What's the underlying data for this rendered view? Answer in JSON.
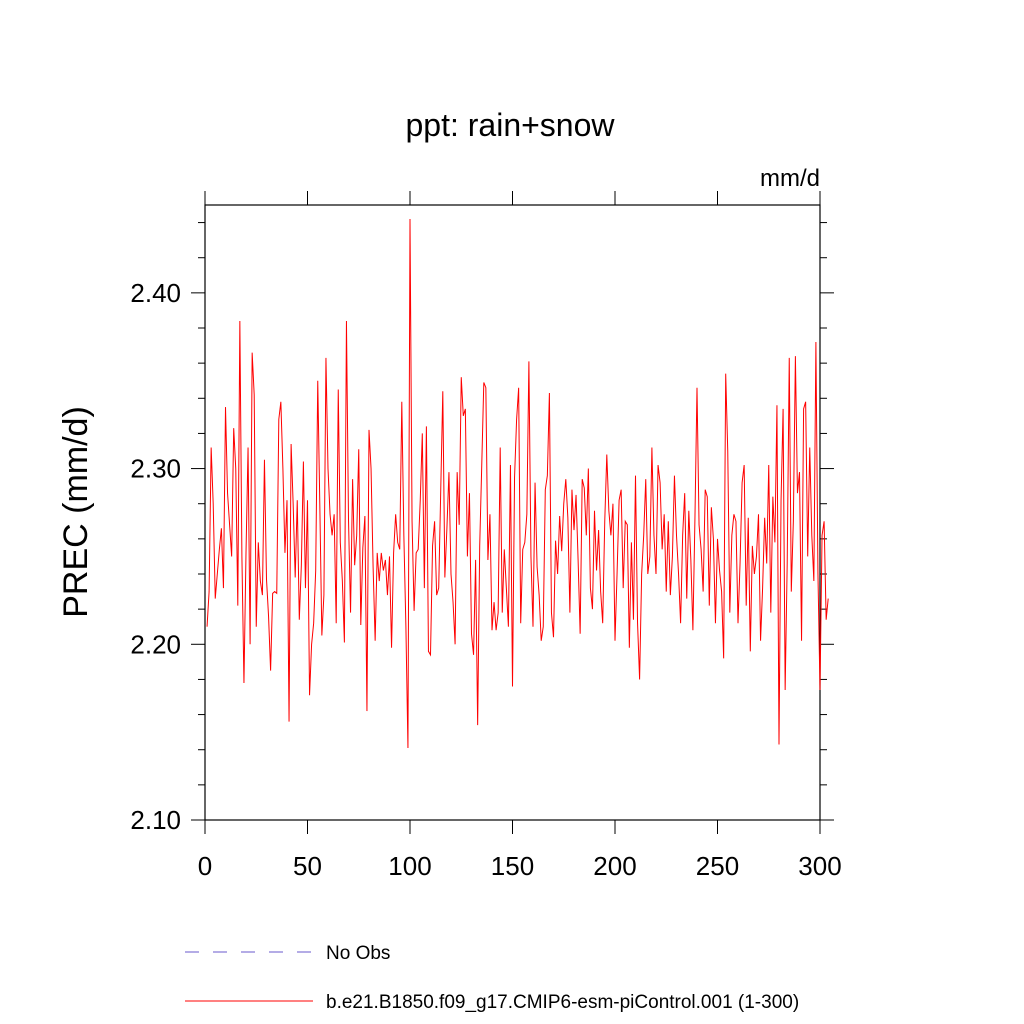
{
  "chart_data": {
    "type": "line",
    "title": "ppt: rain+snow",
    "units": "mm/d",
    "ylabel": "PREC  (mm/d)",
    "xlim": [
      0,
      300
    ],
    "ylim": [
      2.1,
      2.45
    ],
    "x_ticks": [
      0,
      50,
      100,
      150,
      200,
      250,
      300
    ],
    "x_tick_labels": [
      "0",
      "50",
      "100",
      "150",
      "200",
      "250",
      "300"
    ],
    "y_ticks": [
      2.1,
      2.2,
      2.3,
      2.4
    ],
    "y_tick_labels": [
      "2.10",
      "2.20",
      "2.30",
      "2.40"
    ],
    "grid": false,
    "legend_position": "bottom",
    "series": [
      {
        "name": "No Obs",
        "color": "#6a5acd",
        "style": "dashed",
        "values": []
      },
      {
        "name": "b.e21.B1850.f09_g17.CMIP6-esm-piControl.001 (1-300)",
        "color": "#ff0000",
        "style": "solid",
        "x_start": 1,
        "values": [
          2.21,
          2.23,
          2.312,
          2.28,
          2.226,
          2.24,
          2.254,
          2.266,
          2.232,
          2.335,
          2.286,
          2.268,
          2.25,
          2.323,
          2.3,
          2.222,
          2.384,
          2.25,
          2.178,
          2.252,
          2.312,
          2.2,
          2.366,
          2.342,
          2.21,
          2.258,
          2.236,
          2.228,
          2.305,
          2.237,
          2.216,
          2.185,
          2.229,
          2.23,
          2.229,
          2.328,
          2.338,
          2.3,
          2.252,
          2.282,
          2.156,
          2.314,
          2.28,
          2.238,
          2.282,
          2.214,
          2.245,
          2.304,
          2.232,
          2.282,
          2.171,
          2.2,
          2.212,
          2.242,
          2.35,
          2.28,
          2.205,
          2.228,
          2.363,
          2.3,
          2.274,
          2.262,
          2.274,
          2.212,
          2.345,
          2.258,
          2.236,
          2.201,
          2.384,
          2.271,
          2.218,
          2.294,
          2.245,
          2.262,
          2.311,
          2.211,
          2.255,
          2.273,
          2.162,
          2.322,
          2.3,
          2.244,
          2.202,
          2.252,
          2.236,
          2.252,
          2.242,
          2.248,
          2.228,
          2.25,
          2.198,
          2.252,
          2.274,
          2.258,
          2.254,
          2.338,
          2.262,
          2.21,
          2.141,
          2.442,
          2.27,
          2.219,
          2.252,
          2.254,
          2.282,
          2.32,
          2.232,
          2.324,
          2.196,
          2.194,
          2.256,
          2.27,
          2.228,
          2.232,
          2.288,
          2.344,
          2.238,
          2.266,
          2.298,
          2.24,
          2.224,
          2.2,
          2.298,
          2.268,
          2.352,
          2.33,
          2.334,
          2.25,
          2.286,
          2.206,
          2.194,
          2.248,
          2.154,
          2.256,
          2.302,
          2.349,
          2.346,
          2.248,
          2.274,
          2.208,
          2.224,
          2.208,
          2.218,
          2.312,
          2.218,
          2.254,
          2.232,
          2.21,
          2.302,
          2.176,
          2.295,
          2.328,
          2.346,
          2.212,
          2.254,
          2.258,
          2.274,
          2.361,
          2.25,
          2.21,
          2.292,
          2.244,
          2.228,
          2.202,
          2.21,
          2.288,
          2.296,
          2.343,
          2.218,
          2.204,
          2.259,
          2.24,
          2.273,
          2.253,
          2.28,
          2.294,
          2.272,
          2.218,
          2.288,
          2.265,
          2.285,
          2.248,
          2.206,
          2.294,
          2.289,
          2.262,
          2.3,
          2.232,
          2.22,
          2.276,
          2.242,
          2.265,
          2.23,
          2.212,
          2.27,
          2.308,
          2.276,
          2.262,
          2.28,
          2.202,
          2.24,
          2.282,
          2.288,
          2.232,
          2.27,
          2.268,
          2.198,
          2.258,
          2.214,
          2.296,
          2.212,
          2.18,
          2.24,
          2.262,
          2.294,
          2.24,
          2.25,
          2.312,
          2.262,
          2.24,
          2.302,
          2.292,
          2.254,
          2.274,
          2.23,
          2.27,
          2.228,
          2.25,
          2.296,
          2.262,
          2.24,
          2.212,
          2.262,
          2.286,
          2.226,
          2.276,
          2.248,
          2.208,
          2.272,
          2.346,
          2.268,
          2.254,
          2.23,
          2.288,
          2.284,
          2.222,
          2.278,
          2.26,
          2.212,
          2.26,
          2.242,
          2.23,
          2.192,
          2.354,
          2.31,
          2.218,
          2.262,
          2.274,
          2.27,
          2.212,
          2.246,
          2.292,
          2.302,
          2.222,
          2.272,
          2.196,
          2.256,
          2.24,
          2.25,
          2.274,
          2.202,
          2.232,
          2.272,
          2.246,
          2.302,
          2.218,
          2.284,
          2.258,
          2.336,
          2.143,
          2.282,
          2.334,
          2.174,
          2.246,
          2.363,
          2.23,
          2.27,
          2.364,
          2.286,
          2.298,
          2.202,
          2.334,
          2.338,
          2.25,
          2.312,
          2.262,
          2.236,
          2.372,
          2.24,
          2.174,
          2.262,
          2.27,
          2.214,
          2.226
        ]
      }
    ]
  }
}
